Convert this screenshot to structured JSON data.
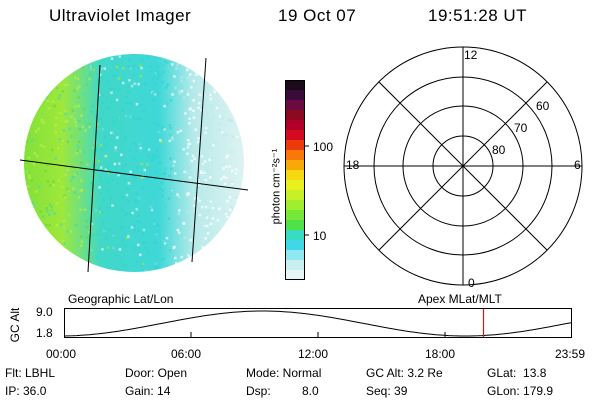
{
  "header": {
    "instrument": "Ultraviolet Imager",
    "date": "19 Oct 07",
    "time": "19:51:28 UT"
  },
  "colorbar": {
    "label": "photon cm⁻²s⁻¹",
    "ticks": [
      "100",
      "10"
    ],
    "colors": [
      "#1a0a1a",
      "#3a0a3a",
      "#6a0a40",
      "#8c0a20",
      "#b0002a",
      "#d40a20",
      "#ec3a0a",
      "#f8780a",
      "#f8a808",
      "#f8d810",
      "#e8f020",
      "#c8f028",
      "#a0ee30",
      "#78e838",
      "#50e048",
      "#38dcc0",
      "#40d8e8",
      "#90e8f0",
      "#c8f0f0",
      "#e6f6f6"
    ]
  },
  "map_labels": {
    "left": "Geographic Lat/Lon",
    "right": "Apex MLat/MLT"
  },
  "polar": {
    "mlt_labels": [
      "12",
      "18",
      "6",
      "0"
    ],
    "lat_labels": [
      "60",
      "70",
      "80"
    ]
  },
  "timeline": {
    "ylabel": "GC Alt",
    "yticks": [
      "9.0",
      "1.8"
    ],
    "xticks": [
      "00:00",
      "06:00",
      "12:00",
      "18:00",
      "23:59"
    ],
    "current_marker_hour": 19.86
  },
  "info": {
    "flt": "Flt: LBHL",
    "ip": "IP: 36.0",
    "door": "Door: Open",
    "gain": "Gain: 14",
    "mode": "Mode: Normal",
    "dsp_label": "Dsp:",
    "dsp_value": "8.0",
    "gc_alt": "GC Alt: 3.2 Re",
    "seq": "Seq: 39",
    "glat": "GLat:  13.8",
    "glon": "GLon: 179.9"
  }
}
